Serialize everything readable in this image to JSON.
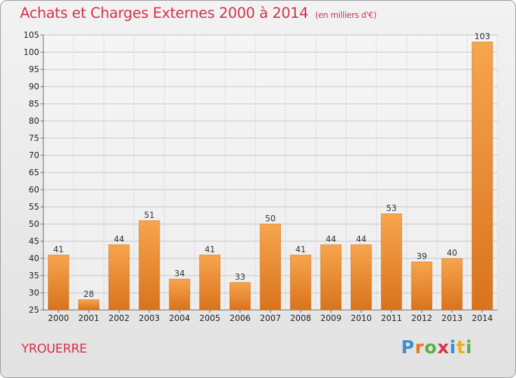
{
  "title": "Achats et Charges Externes 2000 à 2014",
  "unit_note": "(en milliers d'€)",
  "commune": "YROUERRE",
  "logo": {
    "letters": [
      "P",
      "r",
      "o",
      "x",
      "i",
      "t",
      "i"
    ],
    "colors": [
      "#3a8fd0",
      "#e87a1c",
      "#5bb043",
      "#d3344f",
      "#3a8fd0",
      "#e8b21c",
      "#5bb043"
    ]
  },
  "colors": {
    "accent": "#d3344f",
    "bar_light": "#f7a54e",
    "bar_dark": "#d9731c"
  },
  "chart_data": {
    "type": "bar",
    "categories": [
      "2000",
      "2001",
      "2002",
      "2003",
      "2004",
      "2005",
      "2006",
      "2007",
      "2008",
      "2009",
      "2010",
      "2011",
      "2012",
      "2013",
      "2014"
    ],
    "values": [
      41,
      28,
      44,
      51,
      34,
      41,
      33,
      50,
      41,
      44,
      44,
      53,
      39,
      40,
      103
    ],
    "ylim": [
      25,
      105
    ],
    "yticks": [
      25,
      30,
      35,
      40,
      45,
      50,
      55,
      60,
      65,
      70,
      75,
      80,
      85,
      90,
      95,
      100,
      105
    ],
    "grid": true
  }
}
